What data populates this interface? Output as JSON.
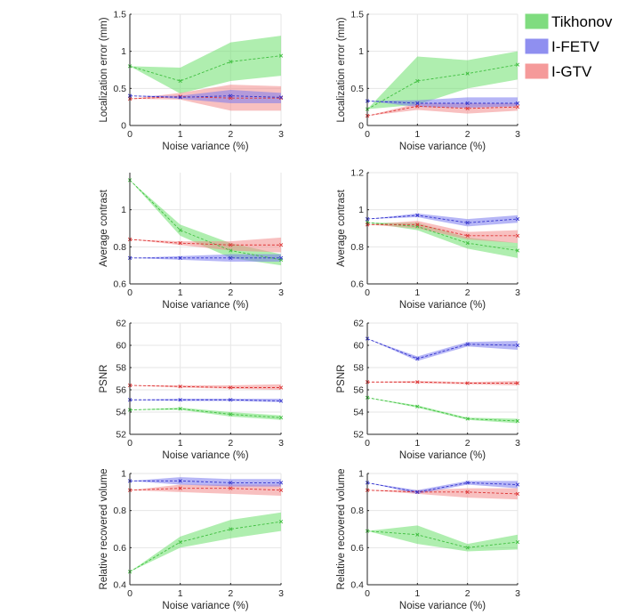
{
  "legend": [
    {
      "name": "Tikhonov",
      "color": "#7fdc7f"
    },
    {
      "name": "I-FETV",
      "color": "#8f8ff0"
    },
    {
      "name": "I-GTV",
      "color": "#f59a9a"
    }
  ],
  "series_colors": {
    "Tikhonov": {
      "line": "#3fbf3f",
      "band": "#6ee06e"
    },
    "I-FETV": {
      "line": "#3333cc",
      "band": "#7a7aee"
    },
    "I-GTV": {
      "line": "#dd3333",
      "band": "#f28c8c"
    }
  },
  "chart_data": [
    {
      "type": "line",
      "panel": "row1-left",
      "xlabel": "Noise variance (%)",
      "ylabel": "Localization error (mm)",
      "x": [
        0,
        1,
        2,
        3
      ],
      "xlim": [
        0,
        3
      ],
      "ylim": [
        0,
        1.5
      ],
      "xticks": [
        "0",
        "1",
        "2",
        "3"
      ],
      "yticks": [
        "0",
        "0.5",
        "1",
        "1.5"
      ],
      "ytick_values": [
        0,
        0.5,
        1,
        1.5
      ],
      "series": [
        {
          "name": "Tikhonov",
          "values": [
            0.8,
            0.6,
            0.86,
            0.94
          ],
          "lower": [
            0.8,
            0.43,
            0.6,
            0.67
          ],
          "upper": [
            0.8,
            0.78,
            1.12,
            1.21
          ]
        },
        {
          "name": "I-FETV",
          "values": [
            0.4,
            0.38,
            0.4,
            0.38
          ],
          "lower": [
            0.4,
            0.36,
            0.3,
            0.3
          ],
          "upper": [
            0.4,
            0.4,
            0.48,
            0.44
          ]
        },
        {
          "name": "I-GTV",
          "values": [
            0.36,
            0.39,
            0.37,
            0.37
          ],
          "lower": [
            0.36,
            0.35,
            0.2,
            0.2
          ],
          "upper": [
            0.36,
            0.44,
            0.55,
            0.53
          ]
        }
      ]
    },
    {
      "type": "line",
      "panel": "row1-right",
      "xlabel": "Noise variance (%)",
      "ylabel": "Localization error (mm)",
      "x": [
        0,
        1,
        2,
        3
      ],
      "xlim": [
        0,
        3
      ],
      "ylim": [
        0,
        1.5
      ],
      "xticks": [
        "0",
        "1",
        "2",
        "3"
      ],
      "yticks": [
        "0",
        "0.5",
        "1",
        "1.5"
      ],
      "ytick_values": [
        0,
        0.5,
        1,
        1.5
      ],
      "series": [
        {
          "name": "Tikhonov",
          "values": [
            0.22,
            0.6,
            0.7,
            0.82
          ],
          "lower": [
            0.22,
            0.28,
            0.5,
            0.62
          ],
          "upper": [
            0.22,
            0.93,
            0.88,
            1.0
          ]
        },
        {
          "name": "I-FETV",
          "values": [
            0.33,
            0.3,
            0.3,
            0.3
          ],
          "lower": [
            0.33,
            0.25,
            0.24,
            0.26
          ],
          "upper": [
            0.33,
            0.34,
            0.38,
            0.38
          ]
        },
        {
          "name": "I-GTV",
          "values": [
            0.13,
            0.26,
            0.23,
            0.25
          ],
          "lower": [
            0.13,
            0.21,
            0.16,
            0.2
          ],
          "upper": [
            0.13,
            0.3,
            0.3,
            0.3
          ]
        }
      ]
    },
    {
      "type": "line",
      "panel": "row2-left",
      "xlabel": "Noise variance (%)",
      "ylabel": "Average contrast",
      "x": [
        0,
        1,
        2,
        3
      ],
      "xlim": [
        0,
        3
      ],
      "ylim": [
        0.6,
        1.2
      ],
      "xticks": [
        "0",
        "1",
        "2",
        "3"
      ],
      "yticks": [
        "0.6",
        "0.8",
        "1"
      ],
      "ytick_values": [
        0.6,
        0.8,
        1.0
      ],
      "series": [
        {
          "name": "Tikhonov",
          "values": [
            1.16,
            0.89,
            0.78,
            0.73
          ],
          "lower": [
            1.16,
            0.86,
            0.74,
            0.7
          ],
          "upper": [
            1.16,
            0.92,
            0.82,
            0.76
          ]
        },
        {
          "name": "I-FETV",
          "values": [
            0.74,
            0.74,
            0.74,
            0.74
          ],
          "lower": [
            0.74,
            0.73,
            0.72,
            0.72
          ],
          "upper": [
            0.74,
            0.75,
            0.76,
            0.76
          ]
        },
        {
          "name": "I-GTV",
          "values": [
            0.84,
            0.82,
            0.81,
            0.81
          ],
          "lower": [
            0.84,
            0.81,
            0.78,
            0.77
          ],
          "upper": [
            0.84,
            0.83,
            0.83,
            0.85
          ]
        }
      ]
    },
    {
      "type": "line",
      "panel": "row2-right",
      "xlabel": "Noise variance (%)",
      "ylabel": "Average contrast",
      "x": [
        0,
        1,
        2,
        3
      ],
      "xlim": [
        0,
        3
      ],
      "ylim": [
        0.6,
        1.2
      ],
      "xticks": [
        "0",
        "1",
        "2",
        "3"
      ],
      "yticks": [
        "0.6",
        "0.8",
        "1",
        "1.2"
      ],
      "ytick_values": [
        0.6,
        0.8,
        1.0,
        1.2
      ],
      "series": [
        {
          "name": "Tikhonov",
          "values": [
            0.93,
            0.91,
            0.82,
            0.78
          ],
          "lower": [
            0.93,
            0.89,
            0.79,
            0.74
          ],
          "upper": [
            0.93,
            0.93,
            0.85,
            0.82
          ]
        },
        {
          "name": "I-FETV",
          "values": [
            0.95,
            0.97,
            0.93,
            0.95
          ],
          "lower": [
            0.95,
            0.96,
            0.91,
            0.93
          ],
          "upper": [
            0.95,
            0.98,
            0.95,
            0.97
          ]
        },
        {
          "name": "I-GTV",
          "values": [
            0.92,
            0.92,
            0.86,
            0.86
          ],
          "lower": [
            0.92,
            0.9,
            0.84,
            0.82
          ],
          "upper": [
            0.92,
            0.94,
            0.88,
            0.89
          ]
        }
      ]
    },
    {
      "type": "line",
      "panel": "row3-left",
      "xlabel": "Noise variance (%)",
      "ylabel": "PSNR",
      "x": [
        0,
        1,
        2,
        3
      ],
      "xlim": [
        0,
        3
      ],
      "ylim": [
        52,
        62
      ],
      "xticks": [
        "0",
        "1",
        "2",
        "3"
      ],
      "yticks": [
        "52",
        "54",
        "56",
        "58",
        "60",
        "62"
      ],
      "ytick_values": [
        52,
        54,
        56,
        58,
        60,
        62
      ],
      "series": [
        {
          "name": "Tikhonov",
          "values": [
            54.2,
            54.3,
            53.8,
            53.5
          ],
          "lower": [
            54.2,
            54.2,
            53.6,
            53.3
          ],
          "upper": [
            54.2,
            54.4,
            54.0,
            53.7
          ]
        },
        {
          "name": "I-FETV",
          "values": [
            55.1,
            55.1,
            55.1,
            55.0
          ],
          "lower": [
            55.1,
            55.0,
            55.0,
            54.9
          ],
          "upper": [
            55.1,
            55.2,
            55.2,
            55.2
          ]
        },
        {
          "name": "I-GTV",
          "values": [
            56.4,
            56.3,
            56.2,
            56.2
          ],
          "lower": [
            56.4,
            56.2,
            56.1,
            56.0
          ],
          "upper": [
            56.4,
            56.4,
            56.4,
            56.5
          ]
        }
      ]
    },
    {
      "type": "line",
      "panel": "row3-right",
      "xlabel": "Noise variance (%)",
      "ylabel": "PSNR",
      "x": [
        0,
        1,
        2,
        3
      ],
      "xlim": [
        0,
        3
      ],
      "ylim": [
        52,
        62
      ],
      "xticks": [
        "0",
        "1",
        "2",
        "3"
      ],
      "yticks": [
        "52",
        "54",
        "56",
        "58",
        "60",
        "62"
      ],
      "ytick_values": [
        52,
        54,
        56,
        58,
        60,
        62
      ],
      "series": [
        {
          "name": "Tikhonov",
          "values": [
            55.3,
            54.5,
            53.4,
            53.2
          ],
          "lower": [
            55.3,
            54.4,
            53.3,
            53.0
          ],
          "upper": [
            55.3,
            54.6,
            53.5,
            53.4
          ]
        },
        {
          "name": "I-FETV",
          "values": [
            60.6,
            58.8,
            60.1,
            60.0
          ],
          "lower": [
            60.6,
            58.6,
            59.9,
            59.6
          ],
          "upper": [
            60.6,
            59.0,
            60.3,
            60.4
          ]
        },
        {
          "name": "I-GTV",
          "values": [
            56.7,
            56.7,
            56.6,
            56.6
          ],
          "lower": [
            56.7,
            56.6,
            56.5,
            56.4
          ],
          "upper": [
            56.7,
            56.8,
            56.7,
            56.8
          ]
        }
      ]
    },
    {
      "type": "line",
      "panel": "row4-left",
      "xlabel": "Noise variance (%)",
      "ylabel": "Relative recovered volume",
      "x": [
        0,
        1,
        2,
        3
      ],
      "xlim": [
        0,
        3
      ],
      "ylim": [
        0.4,
        1.0
      ],
      "xticks": [
        "0",
        "1",
        "2",
        "3"
      ],
      "yticks": [
        "0.4",
        "0.6",
        "0.8",
        "1"
      ],
      "ytick_values": [
        0.4,
        0.6,
        0.8,
        1.0
      ],
      "series": [
        {
          "name": "Tikhonov",
          "values": [
            0.47,
            0.63,
            0.7,
            0.74
          ],
          "lower": [
            0.47,
            0.6,
            0.65,
            0.69
          ],
          "upper": [
            0.47,
            0.66,
            0.75,
            0.79
          ]
        },
        {
          "name": "I-FETV",
          "values": [
            0.96,
            0.96,
            0.95,
            0.95
          ],
          "lower": [
            0.96,
            0.94,
            0.93,
            0.93
          ],
          "upper": [
            0.96,
            0.98,
            0.97,
            0.97
          ]
        },
        {
          "name": "I-GTV",
          "values": [
            0.91,
            0.92,
            0.92,
            0.91
          ],
          "lower": [
            0.91,
            0.9,
            0.89,
            0.88
          ],
          "upper": [
            0.91,
            0.94,
            0.94,
            0.94
          ]
        }
      ]
    },
    {
      "type": "line",
      "panel": "row4-right",
      "xlabel": "Noise variance (%)",
      "ylabel": "Relative recovered volume",
      "x": [
        0,
        1,
        2,
        3
      ],
      "xlim": [
        0,
        3
      ],
      "ylim": [
        0.4,
        1.0
      ],
      "xticks": [
        "0",
        "1",
        "2",
        "3"
      ],
      "yticks": [
        "0.4",
        "0.6",
        "0.8",
        "1"
      ],
      "ytick_values": [
        0.4,
        0.6,
        0.8,
        1.0
      ],
      "series": [
        {
          "name": "Tikhonov",
          "values": [
            0.69,
            0.67,
            0.6,
            0.63
          ],
          "lower": [
            0.69,
            0.62,
            0.58,
            0.59
          ],
          "upper": [
            0.69,
            0.72,
            0.62,
            0.67
          ]
        },
        {
          "name": "I-FETV",
          "values": [
            0.95,
            0.9,
            0.95,
            0.94
          ],
          "lower": [
            0.95,
            0.89,
            0.94,
            0.92
          ],
          "upper": [
            0.95,
            0.91,
            0.96,
            0.96
          ]
        },
        {
          "name": "I-GTV",
          "values": [
            0.91,
            0.9,
            0.9,
            0.89
          ],
          "lower": [
            0.91,
            0.89,
            0.87,
            0.86
          ],
          "upper": [
            0.91,
            0.91,
            0.92,
            0.92
          ]
        }
      ]
    }
  ]
}
